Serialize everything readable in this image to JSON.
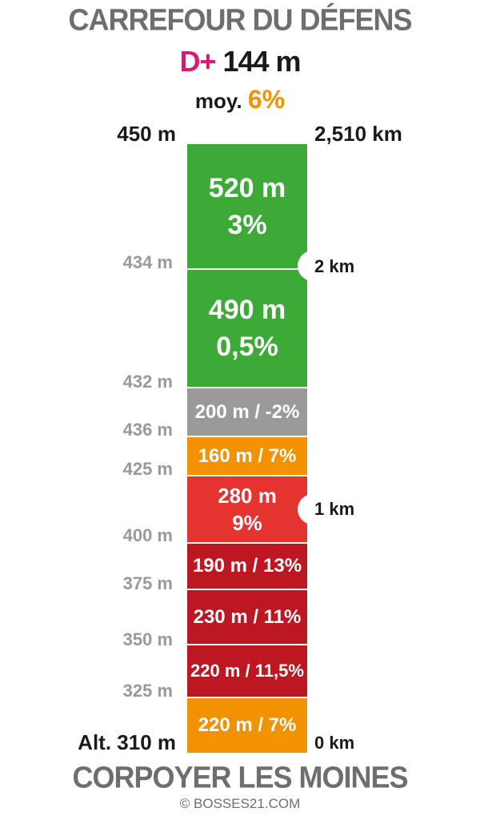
{
  "header": {
    "title": "CARREFOUR DU DÉFENS",
    "dplus_label": "D+",
    "dplus_value": "144 m",
    "avg_label": "moy.",
    "avg_value": "6%"
  },
  "top": {
    "altitude": "450 m",
    "distance": "2,510 km"
  },
  "base": {
    "altitude": "Alt. 310 m",
    "distance": "0 km"
  },
  "segments": [
    {
      "line1": "520 m",
      "line2": "3%",
      "color": "#3daa37"
    },
    {
      "line1": "490 m",
      "line2": "0,5%",
      "color": "#3daa37"
    },
    {
      "line1": "200 m / -2%",
      "line2": "",
      "color": "#9a9a9a"
    },
    {
      "line1": "160 m / 7%",
      "line2": "",
      "color": "#f29200"
    },
    {
      "line1": "280 m",
      "line2": "9%",
      "color": "#e53330"
    },
    {
      "line1": "190 m / 13%",
      "line2": "",
      "color": "#bd1722"
    },
    {
      "line1": "230 m / 11%",
      "line2": "",
      "color": "#bd1722"
    },
    {
      "line1": "220 m / 11,5%",
      "line2": "",
      "color": "#bd1722"
    },
    {
      "line1": "220 m / 7%",
      "line2": "",
      "color": "#f29200"
    }
  ],
  "altitude_labels": [
    "434 m",
    "432 m",
    "436 m",
    "425 m",
    "400 m",
    "375 m",
    "350 m",
    "325 m"
  ],
  "km_markers": [
    "2 km",
    "1 km"
  ],
  "footer": {
    "title": "CORPOYER LES MOINES",
    "credit": "© BOSSES21.COM"
  }
}
